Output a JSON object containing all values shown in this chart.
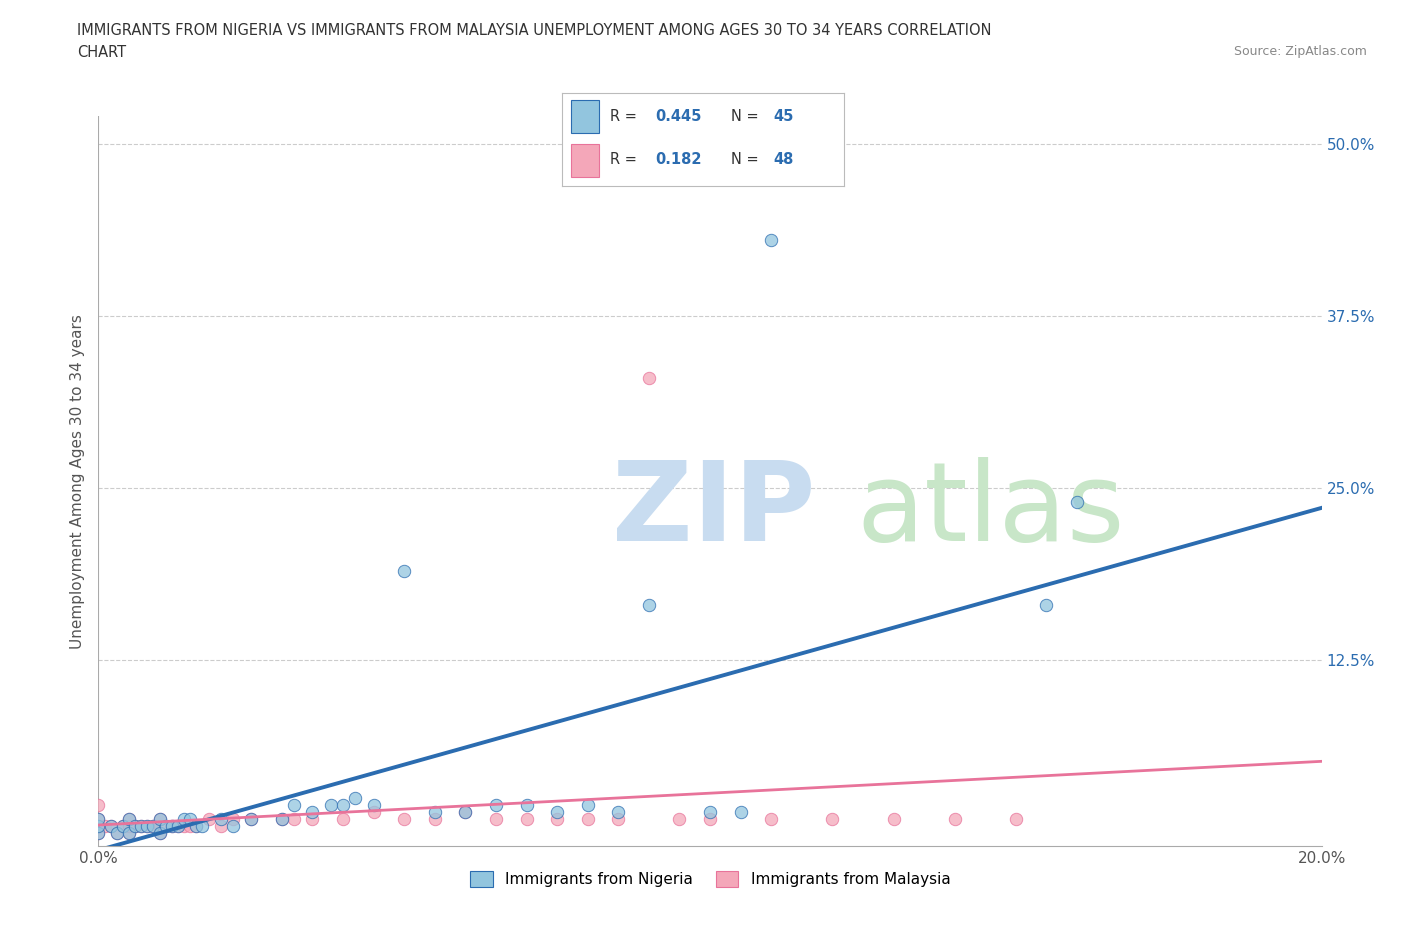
{
  "title_line1": "IMMIGRANTS FROM NIGERIA VS IMMIGRANTS FROM MALAYSIA UNEMPLOYMENT AMONG AGES 30 TO 34 YEARS CORRELATION",
  "title_line2": "CHART",
  "source": "Source: ZipAtlas.com",
  "ylabel": "Unemployment Among Ages 30 to 34 years",
  "xlim": [
    0.0,
    0.2
  ],
  "ylim": [
    -0.01,
    0.52
  ],
  "watermark_zip": "ZIP",
  "watermark_atlas": "atlas",
  "legend_label1": "Immigrants from Nigeria",
  "legend_label2": "Immigrants from Malaysia",
  "r1": 0.445,
  "n1": 45,
  "r2": 0.182,
  "n2": 48,
  "color_nigeria": "#92C5DE",
  "color_malaysia": "#F4A7B9",
  "trendline_color_nigeria": "#2B6CB0",
  "trendline_color_malaysia": "#E8739A",
  "background_color": "#ffffff",
  "nigeria_x": [
    0.0,
    0.0,
    0.0,
    0.002,
    0.003,
    0.004,
    0.005,
    0.005,
    0.006,
    0.007,
    0.008,
    0.009,
    0.01,
    0.01,
    0.011,
    0.012,
    0.013,
    0.014,
    0.015,
    0.016,
    0.017,
    0.02,
    0.022,
    0.025,
    0.03,
    0.032,
    0.035,
    0.038,
    0.04,
    0.042,
    0.045,
    0.05,
    0.055,
    0.06,
    0.065,
    0.07,
    0.075,
    0.08,
    0.085,
    0.09,
    0.1,
    0.105,
    0.11,
    0.155,
    0.16
  ],
  "nigeria_y": [
    0.0,
    0.005,
    0.01,
    0.005,
    0.0,
    0.005,
    0.0,
    0.01,
    0.005,
    0.005,
    0.005,
    0.005,
    0.0,
    0.01,
    0.005,
    0.005,
    0.005,
    0.01,
    0.01,
    0.005,
    0.005,
    0.01,
    0.005,
    0.01,
    0.01,
    0.02,
    0.015,
    0.02,
    0.02,
    0.025,
    0.02,
    0.19,
    0.015,
    0.015,
    0.02,
    0.02,
    0.015,
    0.02,
    0.015,
    0.165,
    0.015,
    0.015,
    0.43,
    0.165,
    0.24
  ],
  "malaysia_x": [
    0.0,
    0.0,
    0.0,
    0.0,
    0.001,
    0.002,
    0.003,
    0.004,
    0.005,
    0.005,
    0.005,
    0.006,
    0.007,
    0.008,
    0.009,
    0.01,
    0.01,
    0.01,
    0.012,
    0.013,
    0.014,
    0.015,
    0.016,
    0.018,
    0.02,
    0.022,
    0.025,
    0.03,
    0.032,
    0.035,
    0.04,
    0.045,
    0.05,
    0.055,
    0.06,
    0.065,
    0.07,
    0.075,
    0.08,
    0.085,
    0.09,
    0.095,
    0.1,
    0.11,
    0.12,
    0.13,
    0.14,
    0.15
  ],
  "malaysia_y": [
    0.0,
    0.005,
    0.01,
    0.02,
    0.005,
    0.005,
    0.0,
    0.005,
    0.0,
    0.005,
    0.01,
    0.005,
    0.005,
    0.005,
    0.005,
    0.0,
    0.005,
    0.01,
    0.005,
    0.005,
    0.005,
    0.005,
    0.005,
    0.01,
    0.005,
    0.01,
    0.01,
    0.01,
    0.01,
    0.01,
    0.01,
    0.015,
    0.01,
    0.01,
    0.015,
    0.01,
    0.01,
    0.01,
    0.01,
    0.01,
    0.33,
    0.01,
    0.01,
    0.01,
    0.01,
    0.01,
    0.01,
    0.01
  ]
}
